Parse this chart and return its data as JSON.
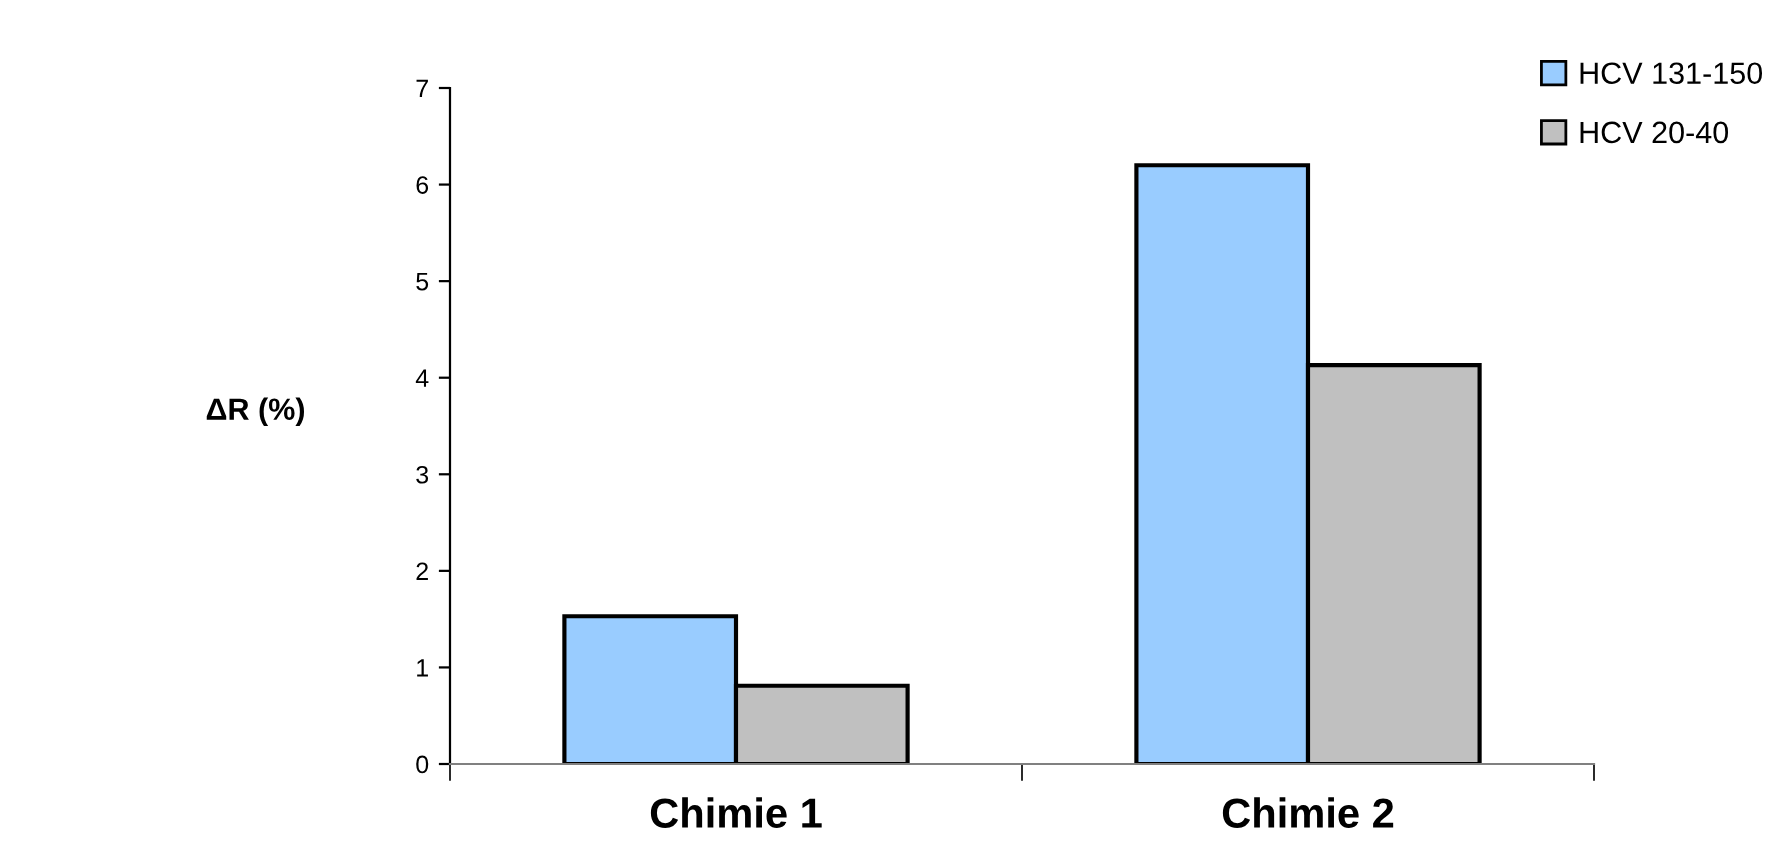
{
  "chart_data": {
    "type": "bar",
    "categories": [
      "Chimie 1",
      "Chimie 2"
    ],
    "ylabel": "ΔR (%)",
    "series": [
      {
        "name": "HCV 131-150",
        "color": "#99ccff",
        "values": [
          1.53,
          6.2
        ]
      },
      {
        "name": "HCV 20-40",
        "color": "#c0c0c0",
        "values": [
          0.81,
          4.13
        ]
      }
    ],
    "ylim": [
      0,
      7
    ],
    "yticks": [
      0,
      1,
      2,
      3,
      4,
      5,
      6,
      7
    ],
    "grid": false,
    "legend": "top right"
  }
}
